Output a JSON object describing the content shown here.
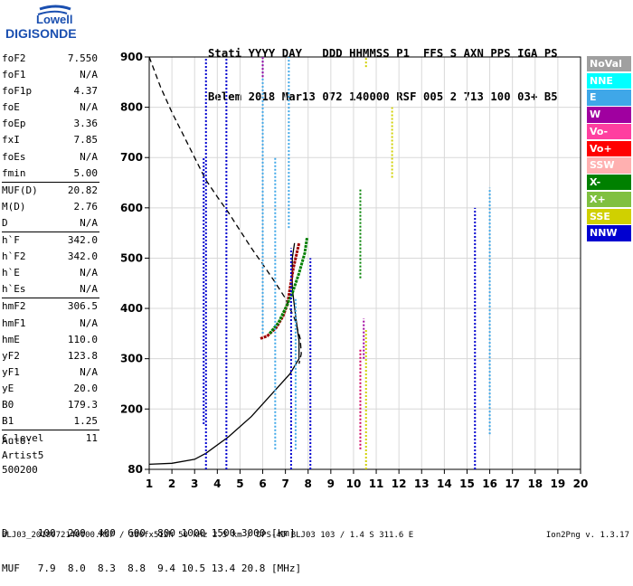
{
  "logo": {
    "line1": "Lowell",
    "line2": "DIGISONDE"
  },
  "header": {
    "line1": "Stati YYYY DAY   DDD HHMMSS P1  FFS S AXN PPS IGA PS",
    "line2": "Belem 2018 Mar13 072 140000 RSF 005 2 713 100 03+ B5"
  },
  "params": [
    {
      "label": "foF2",
      "value": "7.550",
      "sep": false
    },
    {
      "label": "foF1",
      "value": "N/A",
      "sep": false
    },
    {
      "label": "foF1p",
      "value": "4.37",
      "sep": false
    },
    {
      "label": "foE",
      "value": "N/A",
      "sep": false
    },
    {
      "label": "foEp",
      "value": "3.36",
      "sep": false
    },
    {
      "label": "fxI",
      "value": "7.85",
      "sep": false
    },
    {
      "label": "foEs",
      "value": "N/A",
      "sep": false
    },
    {
      "label": "fmin",
      "value": "5.00",
      "sep": false
    },
    {
      "label": "MUF(D)",
      "value": "20.82",
      "sep": true
    },
    {
      "label": "M(D)",
      "value": "2.76",
      "sep": false
    },
    {
      "label": "D",
      "value": "N/A",
      "sep": false
    },
    {
      "label": "h`F",
      "value": "342.0",
      "sep": true
    },
    {
      "label": "h`F2",
      "value": "342.0",
      "sep": false
    },
    {
      "label": "h`E",
      "value": "N/A",
      "sep": false
    },
    {
      "label": "h`Es",
      "value": "N/A",
      "sep": false
    },
    {
      "label": "hmF2",
      "value": "306.5",
      "sep": true
    },
    {
      "label": "hmF1",
      "value": "N/A",
      "sep": false
    },
    {
      "label": "hmE",
      "value": "110.0",
      "sep": false
    },
    {
      "label": "yF2",
      "value": "123.8",
      "sep": false
    },
    {
      "label": "yF1",
      "value": "N/A",
      "sep": false
    },
    {
      "label": "yE",
      "value": "20.0",
      "sep": false
    },
    {
      "label": "B0",
      "value": "179.3",
      "sep": false
    },
    {
      "label": "B1",
      "value": "1.25",
      "sep": false
    },
    {
      "label": "C-level",
      "value": "11",
      "sep": true
    }
  ],
  "auto": [
    "Auto:",
    "Artist5",
    "500200"
  ],
  "legend": [
    {
      "label": "NoVal",
      "color": "#a0a0a0"
    },
    {
      "label": "NNE",
      "color": "#00ffff"
    },
    {
      "label": "E",
      "color": "#3fa7e8"
    },
    {
      "label": "W",
      "color": "#a000a0"
    },
    {
      "label": "Vo-",
      "color": "#ff3fa0"
    },
    {
      "label": "Vo+",
      "color": "#ff0000"
    },
    {
      "label": "SSW",
      "color": "#ffb0b0"
    },
    {
      "label": "X-",
      "color": "#008000"
    },
    {
      "label": "X+",
      "color": "#80c040"
    },
    {
      "label": "SSE",
      "color": "#d0d000"
    },
    {
      "label": "NNW",
      "color": "#0000d0"
    }
  ],
  "conversion": {
    "line1": "D     100  200  400  600  800 1000 1500 3000 [km]",
    "line2": "MUF   7.9  8.0  8.3  8.8  9.4 10.5 13.4 20.8 [MHz]"
  },
  "footer": "BLJ03_2018072140000.RSF / 380fx512h 50 kHz 2.5 km / DPS-4D BLJ03 103 / 1.4 S 311.6 E",
  "version": "Ion2Png v. 1.3.17",
  "chart_data": {
    "type": "scatter",
    "title": "",
    "xlabel": "",
    "ylabel": "",
    "xlim": [
      1,
      20
    ],
    "ylim": [
      80,
      900
    ],
    "xticks": [
      1,
      2,
      3,
      4,
      5,
      6,
      7,
      8,
      9,
      10,
      11,
      12,
      13,
      14,
      15,
      16,
      17,
      18,
      19,
      20
    ],
    "yticks": [
      80,
      200,
      300,
      400,
      500,
      600,
      700,
      800,
      900
    ],
    "grid": true,
    "legend_position": "right",
    "series": [
      {
        "kind": "line",
        "style": "dashed",
        "points": [
          [
            1.0,
            900
          ],
          [
            1.5,
            840
          ],
          [
            2.0,
            790
          ],
          [
            2.5,
            745
          ],
          [
            3.0,
            700
          ],
          [
            3.5,
            655
          ],
          [
            4.0,
            622
          ],
          [
            4.5,
            590
          ],
          [
            5.0,
            555
          ],
          [
            5.5,
            520
          ],
          [
            6.0,
            488
          ],
          [
            6.5,
            455
          ],
          [
            7.0,
            420
          ],
          [
            7.4,
            380
          ],
          [
            7.65,
            340
          ],
          [
            7.7,
            310
          ],
          [
            7.6,
            290
          ]
        ]
      },
      {
        "kind": "line",
        "style": "solid",
        "points": [
          [
            1.0,
            90
          ],
          [
            2.0,
            92
          ],
          [
            3.0,
            100
          ],
          [
            3.5,
            112
          ],
          [
            4.5,
            145
          ],
          [
            5.5,
            185
          ],
          [
            6.5,
            235
          ],
          [
            7.2,
            270
          ],
          [
            7.6,
            300
          ],
          [
            7.6,
            335
          ],
          [
            7.45,
            385
          ],
          [
            7.3,
            440
          ],
          [
            7.3,
            500
          ],
          [
            7.4,
            530
          ]
        ]
      },
      {
        "kind": "trace",
        "color": "#a00000",
        "points": [
          [
            5.9,
            340
          ],
          [
            6.2,
            345
          ],
          [
            6.6,
            362
          ],
          [
            6.9,
            385
          ],
          [
            7.1,
            410
          ],
          [
            7.2,
            440
          ],
          [
            7.35,
            480
          ],
          [
            7.5,
            510
          ],
          [
            7.6,
            530
          ]
        ]
      },
      {
        "kind": "trace",
        "color": "#008000",
        "points": [
          [
            6.3,
            350
          ],
          [
            6.7,
            372
          ],
          [
            7.0,
            400
          ],
          [
            7.3,
            430
          ],
          [
            7.6,
            470
          ],
          [
            7.85,
            510
          ],
          [
            7.95,
            540
          ]
        ]
      },
      {
        "kind": "vertical",
        "color": "#0000d0",
        "x": 3.5,
        "y": [
          80,
          900
        ]
      },
      {
        "kind": "vertical",
        "color": "#0000d0",
        "x": 4.4,
        "y": [
          80,
          900
        ]
      },
      {
        "kind": "vertical",
        "color": "#0000d0",
        "x": 3.4,
        "y": [
          170,
          700
        ]
      },
      {
        "kind": "vertical",
        "color": "#0000d0",
        "x": 7.25,
        "y": [
          80,
          520
        ]
      },
      {
        "kind": "vertical",
        "color": "#3fa7e8",
        "x": 7.15,
        "y": [
          560,
          900
        ]
      },
      {
        "kind": "vertical",
        "color": "#3fa7e8",
        "x": 6.55,
        "y": [
          120,
          700
        ]
      },
      {
        "kind": "vertical",
        "color": "#3fa7e8",
        "x": 6.0,
        "y": [
          350,
          900
        ]
      },
      {
        "kind": "vertical",
        "color": "#3fa7e8",
        "x": 7.45,
        "y": [
          120,
          420
        ]
      },
      {
        "kind": "vertical",
        "color": "#008000",
        "x": 10.3,
        "y": [
          460,
          640
        ]
      },
      {
        "kind": "vertical",
        "color": "#d00060",
        "x": 10.3,
        "y": [
          120,
          320
        ]
      },
      {
        "kind": "vertical",
        "color": "#d0d000",
        "x": 10.55,
        "y": [
          80,
          360
        ]
      },
      {
        "kind": "vertical",
        "color": "#a000a0",
        "x": 10.45,
        "y": [
          300,
          380
        ]
      },
      {
        "kind": "vertical",
        "color": "#d0d000",
        "x": 11.7,
        "y": [
          660,
          800
        ]
      },
      {
        "kind": "vertical",
        "color": "#0000d0",
        "x": 15.35,
        "y": [
          80,
          600
        ]
      },
      {
        "kind": "vertical",
        "color": "#3fa7e8",
        "x": 16.0,
        "y": [
          150,
          640
        ]
      },
      {
        "kind": "vertical",
        "color": "#0000d0",
        "x": 8.1,
        "y": [
          80,
          500
        ]
      },
      {
        "kind": "vertical",
        "color": "#a000a0",
        "x": 6.0,
        "y": [
          860,
          900
        ]
      },
      {
        "kind": "vertical",
        "color": "#d0d000",
        "x": 10.55,
        "y": [
          880,
          900
        ]
      }
    ]
  }
}
